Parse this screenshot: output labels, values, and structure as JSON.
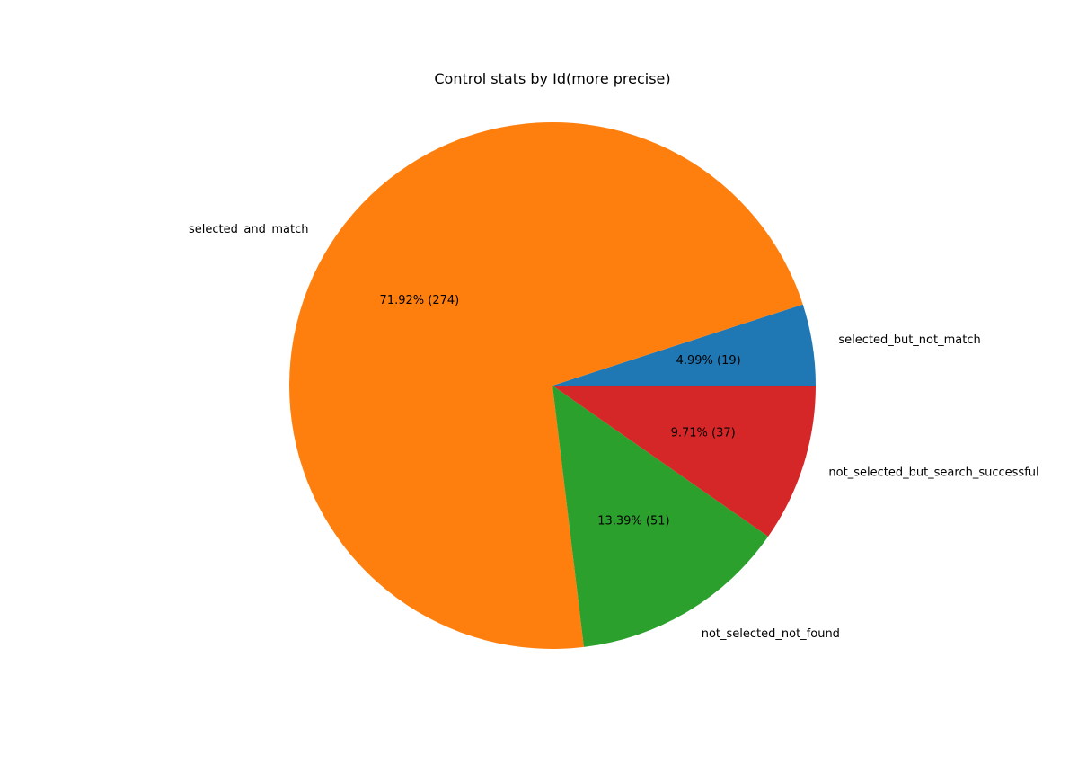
{
  "chart_data": {
    "type": "pie",
    "title": "Control stats by Id(more precise)",
    "slices": [
      {
        "label": "selected_but_not_match",
        "value": 19,
        "percent_text": "4.99%  (19)",
        "color": "#1f77b4"
      },
      {
        "label": "selected_and_match",
        "value": 274,
        "percent_text": "71.92%  (274)",
        "color": "#ff7f0e"
      },
      {
        "label": "not_selected_not_found",
        "value": 51,
        "percent_text": "13.39%  (51)",
        "color": "#2ca02c"
      },
      {
        "label": "not_selected_but_search_successful",
        "value": 37,
        "percent_text": "9.71%  (37)",
        "color": "#d62728"
      }
    ],
    "start_angle_deg": 0,
    "direction": "counterclockwise",
    "legend": "none"
  }
}
